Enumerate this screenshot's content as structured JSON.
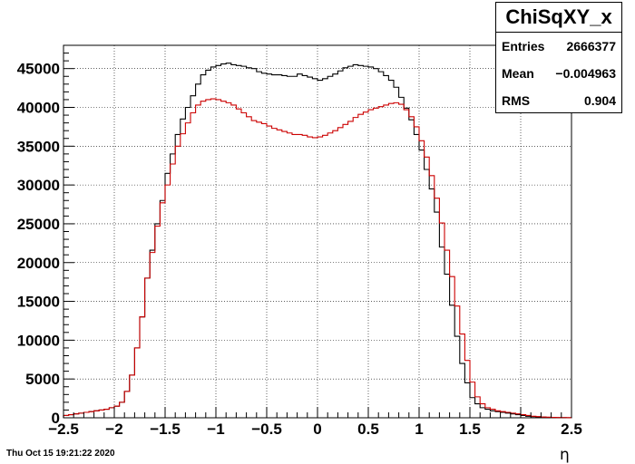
{
  "chart_data": {
    "type": "histogram",
    "title": "",
    "xlabel": "η",
    "ylabel": "",
    "xlim": [
      -2.5,
      2.5
    ],
    "ylim": [
      0,
      48000
    ],
    "grid": true,
    "x_ticks": [
      "−2.5",
      "−2",
      "−1.5",
      "−1",
      "−0.5",
      "0",
      "0.5",
      "1",
      "1.5",
      "2",
      "2.5"
    ],
    "y_ticks": [
      "0",
      "5000",
      "10000",
      "15000",
      "20000",
      "25000",
      "30000",
      "35000",
      "40000",
      "45000"
    ],
    "bin_edges_start": -2.5,
    "bin_width": 0.05,
    "series": [
      {
        "color": "#000000",
        "values": [
          300,
          400,
          500,
          600,
          700,
          800,
          900,
          1000,
          1100,
          1300,
          1500,
          2000,
          3400,
          5500,
          9000,
          13000,
          18000,
          21600,
          25000,
          28000,
          31500,
          34000,
          36500,
          38500,
          40000,
          41500,
          43000,
          44200,
          44800,
          45200,
          45400,
          45600,
          45700,
          45500,
          45400,
          45300,
          45100,
          45000,
          44600,
          44400,
          44300,
          44200,
          44200,
          44100,
          44000,
          44000,
          44300,
          44100,
          43900,
          43700,
          43500,
          43700,
          44000,
          44300,
          44700,
          45100,
          45300,
          45500,
          45400,
          45300,
          45200,
          45000,
          44600,
          44100,
          43500,
          42600,
          41300,
          39900,
          38400,
          36500,
          34500,
          32000,
          29500,
          26500,
          22000,
          18500,
          14500,
          10500,
          7000,
          4500,
          2600,
          1800,
          1300,
          1100,
          900,
          800,
          700,
          600,
          500,
          400,
          300,
          200,
          150,
          100,
          80,
          50,
          40,
          30,
          20,
          10
        ]
      },
      {
        "color": "#cc0000",
        "values": [
          300,
          400,
          500,
          600,
          700,
          800,
          900,
          1000,
          1100,
          1300,
          1500,
          2000,
          3400,
          5500,
          9000,
          13000,
          18000,
          21300,
          24700,
          27700,
          30000,
          32700,
          35000,
          36600,
          38000,
          39300,
          40300,
          40800,
          41000,
          41100,
          41000,
          40800,
          40600,
          40300,
          39800,
          39300,
          38800,
          38300,
          38100,
          37900,
          37600,
          37300,
          37100,
          36900,
          36700,
          36500,
          36500,
          36400,
          36200,
          36100,
          36200,
          36400,
          36700,
          37000,
          37400,
          37800,
          38200,
          38700,
          39100,
          39400,
          39700,
          39900,
          40100,
          40300,
          40500,
          40600,
          40400,
          39700,
          38800,
          37500,
          35700,
          33600,
          31200,
          28300,
          25100,
          21600,
          18200,
          14400,
          10800,
          7400,
          4600,
          2700,
          1800,
          1300,
          1100,
          900,
          800,
          700,
          600,
          500,
          400,
          300,
          200,
          150,
          100,
          80,
          50,
          40,
          30,
          20
        ]
      }
    ]
  },
  "stats": {
    "title": "ChiSqXY_x",
    "entries_label": "Entries",
    "entries_value": "2666377",
    "mean_label": "Mean",
    "mean_value": "−0.004963",
    "rms_label": "RMS",
    "rms_value": "0.904"
  },
  "timestamp": "Thu Oct 15 19:21:22 2020"
}
